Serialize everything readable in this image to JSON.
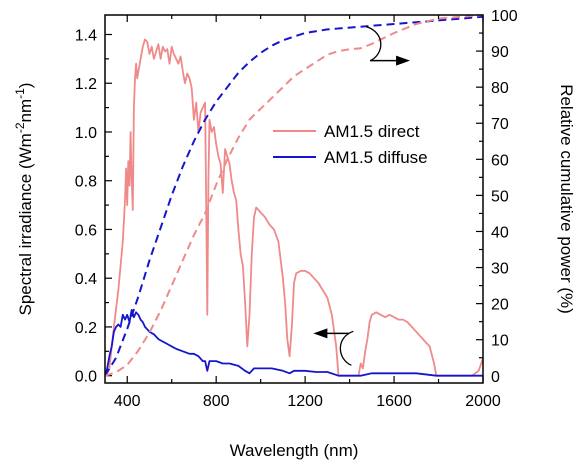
{
  "chart_data": {
    "type": "line",
    "xlabel": "Wavelength (nm)",
    "ylabel_left": "Spectral irradiance (Wm",
    "ylabel_left_sup1": "-2",
    "ylabel_left_mid": "nm",
    "ylabel_left_sup2": "-1",
    "ylabel_left_end": ")",
    "ylabel_right": "Relative cumulative power (%)",
    "xlim": [
      300,
      2000
    ],
    "ylim_left": [
      -0.03,
      1.48
    ],
    "ylim_right": [
      -2.0,
      100.0
    ],
    "x_ticks": [
      400,
      800,
      1200,
      1600,
      2000
    ],
    "x_tick_labels": [
      "400",
      "800",
      "1200",
      "1600",
      "2000"
    ],
    "y_left_ticks": [
      0.0,
      0.2,
      0.4,
      0.6,
      0.8,
      1.0,
      1.2,
      1.4
    ],
    "y_left_tick_labels": [
      "0.0",
      "0.2",
      "0.4",
      "0.6",
      "0.8",
      "1.0",
      "1.2",
      "1.4"
    ],
    "y_right_ticks": [
      0,
      10,
      20,
      30,
      40,
      50,
      60,
      70,
      80,
      90,
      100
    ],
    "y_right_tick_labels": [
      "0",
      "10",
      "20",
      "30",
      "40",
      "50",
      "60",
      "70",
      "80",
      "90",
      "100"
    ],
    "legend": [
      {
        "label": "AM1.5 direct",
        "color": "#f08a8a"
      },
      {
        "label": "AM1.5 diffuse",
        "color": "#1515d0"
      }
    ],
    "legend_position": "middle-right",
    "series": [
      {
        "axis": "left",
        "style": "solid",
        "color": "#f08a8a",
        "points": [
          [
            300,
            0
          ],
          [
            320,
            0.03
          ],
          [
            340,
            0.2
          ],
          [
            360,
            0.35
          ],
          [
            380,
            0.55
          ],
          [
            390,
            0.72
          ],
          [
            395,
            0.85
          ],
          [
            400,
            0.7
          ],
          [
            405,
            0.88
          ],
          [
            410,
            0.78
          ],
          [
            415,
            1.0
          ],
          [
            420,
            0.8
          ],
          [
            425,
            0.68
          ],
          [
            430,
            1.1
          ],
          [
            435,
            1.22
          ],
          [
            440,
            1.28
          ],
          [
            445,
            1.22
          ],
          [
            450,
            1.25
          ],
          [
            460,
            1.3
          ],
          [
            470,
            1.35
          ],
          [
            480,
            1.38
          ],
          [
            490,
            1.37
          ],
          [
            500,
            1.32
          ],
          [
            510,
            1.35
          ],
          [
            520,
            1.3
          ],
          [
            530,
            1.33
          ],
          [
            540,
            1.36
          ],
          [
            550,
            1.3
          ],
          [
            560,
            1.35
          ],
          [
            570,
            1.33
          ],
          [
            580,
            1.34
          ],
          [
            590,
            1.28
          ],
          [
            600,
            1.35
          ],
          [
            610,
            1.32
          ],
          [
            620,
            1.3
          ],
          [
            630,
            1.28
          ],
          [
            640,
            1.31
          ],
          [
            650,
            1.25
          ],
          [
            660,
            1.2
          ],
          [
            670,
            1.24
          ],
          [
            680,
            1.22
          ],
          [
            690,
            1.18
          ],
          [
            700,
            1.05
          ],
          [
            710,
            1.12
          ],
          [
            720,
            1.0
          ],
          [
            730,
            1.08
          ],
          [
            740,
            1.1
          ],
          [
            750,
            1.12
          ],
          [
            755,
            0.7
          ],
          [
            760,
            0.25
          ],
          [
            765,
            0.8
          ],
          [
            770,
            1.05
          ],
          [
            780,
            1.0
          ],
          [
            790,
            1.02
          ],
          [
            800,
            0.95
          ],
          [
            810,
            0.9
          ],
          [
            820,
            0.87
          ],
          [
            830,
            0.75
          ],
          [
            840,
            0.93
          ],
          [
            850,
            0.9
          ],
          [
            860,
            0.87
          ],
          [
            870,
            0.8
          ],
          [
            880,
            0.75
          ],
          [
            890,
            0.72
          ],
          [
            900,
            0.6
          ],
          [
            910,
            0.5
          ],
          [
            920,
            0.45
          ],
          [
            930,
            0.3
          ],
          [
            940,
            0.12
          ],
          [
            950,
            0.25
          ],
          [
            960,
            0.5
          ],
          [
            970,
            0.65
          ],
          [
            980,
            0.69
          ],
          [
            1000,
            0.67
          ],
          [
            1020,
            0.65
          ],
          [
            1040,
            0.62
          ],
          [
            1060,
            0.6
          ],
          [
            1080,
            0.55
          ],
          [
            1100,
            0.4
          ],
          [
            1110,
            0.3
          ],
          [
            1120,
            0.15
          ],
          [
            1130,
            0.08
          ],
          [
            1140,
            0.2
          ],
          [
            1150,
            0.38
          ],
          [
            1160,
            0.42
          ],
          [
            1180,
            0.43
          ],
          [
            1200,
            0.43
          ],
          [
            1220,
            0.42
          ],
          [
            1240,
            0.4
          ],
          [
            1260,
            0.38
          ],
          [
            1280,
            0.35
          ],
          [
            1300,
            0.32
          ],
          [
            1320,
            0.25
          ],
          [
            1340,
            0.12
          ],
          [
            1350,
            0
          ],
          [
            1440,
            0
          ],
          [
            1450,
            0.05
          ],
          [
            1460,
            0.03
          ],
          [
            1470,
            0.1
          ],
          [
            1480,
            0.15
          ],
          [
            1490,
            0.22
          ],
          [
            1500,
            0.25
          ],
          [
            1520,
            0.26
          ],
          [
            1540,
            0.25
          ],
          [
            1560,
            0.24
          ],
          [
            1580,
            0.25
          ],
          [
            1600,
            0.24
          ],
          [
            1620,
            0.23
          ],
          [
            1640,
            0.23
          ],
          [
            1660,
            0.22
          ],
          [
            1680,
            0.2
          ],
          [
            1700,
            0.18
          ],
          [
            1720,
            0.16
          ],
          [
            1740,
            0.14
          ],
          [
            1760,
            0.12
          ],
          [
            1780,
            0.05
          ],
          [
            1790,
            0
          ],
          [
            1950,
            0
          ],
          [
            1980,
            0.02
          ],
          [
            2000,
            0.07
          ]
        ]
      },
      {
        "axis": "left",
        "style": "solid",
        "color": "#1515d0",
        "points": [
          [
            300,
            0
          ],
          [
            310,
            0.03
          ],
          [
            320,
            0.08
          ],
          [
            330,
            0.12
          ],
          [
            340,
            0.18
          ],
          [
            350,
            0.2
          ],
          [
            360,
            0.21
          ],
          [
            370,
            0.2
          ],
          [
            380,
            0.25
          ],
          [
            390,
            0.23
          ],
          [
            400,
            0.25
          ],
          [
            410,
            0.22
          ],
          [
            420,
            0.27
          ],
          [
            430,
            0.24
          ],
          [
            440,
            0.26
          ],
          [
            450,
            0.25
          ],
          [
            460,
            0.23
          ],
          [
            470,
            0.22
          ],
          [
            480,
            0.2
          ],
          [
            500,
            0.18
          ],
          [
            520,
            0.17
          ],
          [
            540,
            0.15
          ],
          [
            560,
            0.14
          ],
          [
            580,
            0.13
          ],
          [
            600,
            0.12
          ],
          [
            620,
            0.11
          ],
          [
            650,
            0.1
          ],
          [
            680,
            0.09
          ],
          [
            700,
            0.09
          ],
          [
            720,
            0.08
          ],
          [
            740,
            0.06
          ],
          [
            750,
            0.06
          ],
          [
            760,
            0.02
          ],
          [
            770,
            0.06
          ],
          [
            800,
            0.06
          ],
          [
            830,
            0.05
          ],
          [
            860,
            0.05
          ],
          [
            900,
            0.04
          ],
          [
            930,
            0.02
          ],
          [
            950,
            0.01
          ],
          [
            970,
            0.03
          ],
          [
            1000,
            0.03
          ],
          [
            1050,
            0.03
          ],
          [
            1100,
            0.02
          ],
          [
            1130,
            0.01
          ],
          [
            1150,
            0.02
          ],
          [
            1200,
            0.02
          ],
          [
            1250,
            0.015
          ],
          [
            1300,
            0.015
          ],
          [
            1350,
            0
          ],
          [
            1450,
            0
          ],
          [
            1500,
            0.01
          ],
          [
            1600,
            0.01
          ],
          [
            1700,
            0.01
          ],
          [
            1790,
            0
          ],
          [
            1950,
            0
          ],
          [
            2000,
            0
          ]
        ]
      },
      {
        "axis": "right",
        "style": "dashed",
        "color": "#1515d0",
        "points": [
          [
            300,
            0
          ],
          [
            350,
            5
          ],
          [
            400,
            13
          ],
          [
            450,
            22
          ],
          [
            500,
            32
          ],
          [
            550,
            41
          ],
          [
            600,
            50
          ],
          [
            650,
            58
          ],
          [
            700,
            65
          ],
          [
            750,
            71
          ],
          [
            800,
            76
          ],
          [
            850,
            80
          ],
          [
            900,
            84
          ],
          [
            950,
            87
          ],
          [
            1000,
            89.5
          ],
          [
            1050,
            91.5
          ],
          [
            1100,
            93
          ],
          [
            1150,
            94
          ],
          [
            1200,
            95
          ],
          [
            1300,
            96
          ],
          [
            1400,
            96.5
          ],
          [
            1500,
            97
          ],
          [
            1600,
            97.5
          ],
          [
            1700,
            98
          ],
          [
            1800,
            98.5
          ],
          [
            1900,
            99
          ],
          [
            2000,
            99.5
          ]
        ]
      },
      {
        "axis": "right",
        "style": "dashed",
        "color": "#f08a8a",
        "points": [
          [
            300,
            0
          ],
          [
            350,
            1
          ],
          [
            400,
            3
          ],
          [
            450,
            7
          ],
          [
            500,
            12
          ],
          [
            550,
            18
          ],
          [
            600,
            25
          ],
          [
            650,
            32
          ],
          [
            700,
            39
          ],
          [
            750,
            45
          ],
          [
            800,
            53
          ],
          [
            850,
            60
          ],
          [
            900,
            66
          ],
          [
            950,
            71
          ],
          [
            1000,
            74
          ],
          [
            1050,
            77
          ],
          [
            1100,
            80
          ],
          [
            1150,
            83
          ],
          [
            1200,
            85
          ],
          [
            1250,
            87
          ],
          [
            1300,
            89
          ],
          [
            1350,
            90
          ],
          [
            1400,
            90.5
          ],
          [
            1450,
            90.8
          ],
          [
            1500,
            92
          ],
          [
            1600,
            95
          ],
          [
            1700,
            97.5
          ],
          [
            1800,
            99
          ],
          [
            1900,
            99.5
          ],
          [
            2000,
            100
          ]
        ]
      }
    ],
    "annotations": [
      {
        "type": "arrow-right-axis",
        "x": 1510,
        "y_left": 1.35
      },
      {
        "type": "arrow-left-axis",
        "x": 1390,
        "y_left": 0.1
      }
    ]
  }
}
